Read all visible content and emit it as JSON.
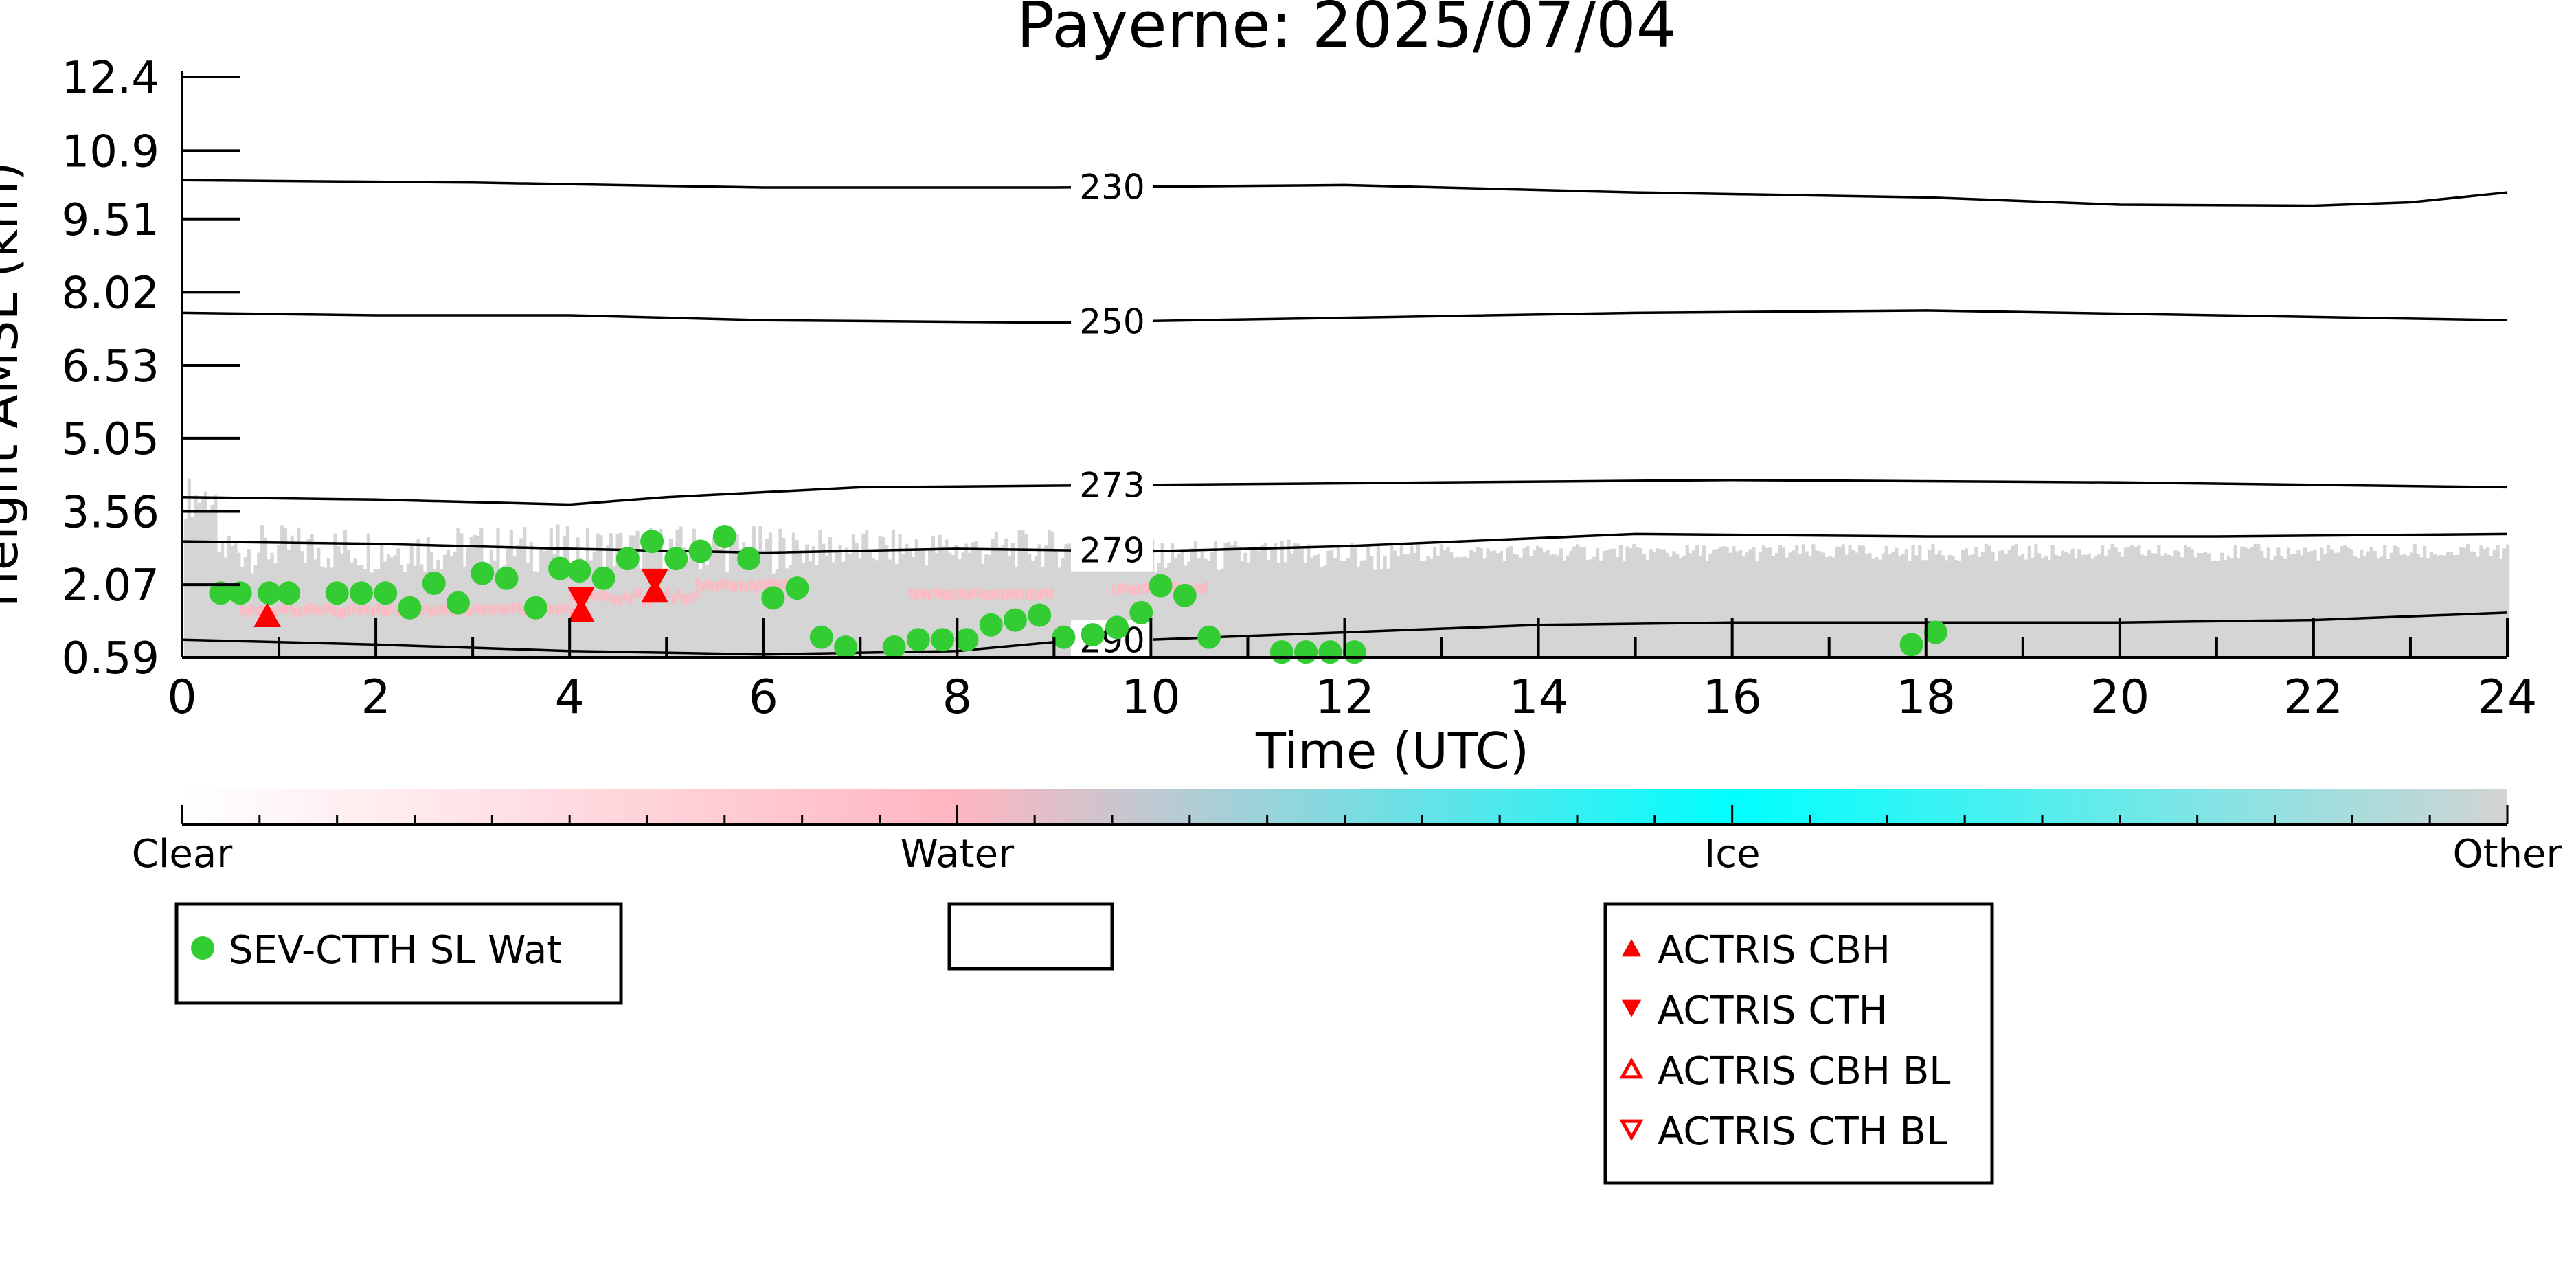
{
  "chart_data": {
    "type": "scatter",
    "title": "Payerne: 2025/07/04",
    "xlabel": "Time (UTC)",
    "ylabel": "Height AMSL (km)",
    "xlim": [
      0,
      24
    ],
    "ylim": [
      0.59,
      12.4
    ],
    "xticks": [
      "0",
      "2",
      "4",
      "6",
      "8",
      "10",
      "12",
      "14",
      "16",
      "18",
      "20",
      "22",
      "24"
    ],
    "yticks": [
      "0.59",
      "2.07",
      "3.56",
      "5.05",
      "6.53",
      "8.02",
      "9.51",
      "10.9",
      "12.4"
    ],
    "ytick_values": [
      0.59,
      2.07,
      3.56,
      5.05,
      6.53,
      8.02,
      9.51,
      10.9,
      12.4
    ],
    "isotherms": [
      {
        "label": "230",
        "label_x": 9.6,
        "points": [
          [
            0,
            10.3
          ],
          [
            3,
            10.25
          ],
          [
            6,
            10.15
          ],
          [
            9,
            10.15
          ],
          [
            12,
            10.2
          ],
          [
            15,
            10.05
          ],
          [
            18,
            9.95
          ],
          [
            20,
            9.8
          ],
          [
            22,
            9.78
          ],
          [
            23,
            9.85
          ],
          [
            24,
            10.05
          ]
        ]
      },
      {
        "label": "250",
        "label_x": 9.6,
        "points": [
          [
            0,
            7.6
          ],
          [
            2,
            7.55
          ],
          [
            4,
            7.55
          ],
          [
            6,
            7.45
          ],
          [
            9,
            7.4
          ],
          [
            12,
            7.5
          ],
          [
            15,
            7.6
          ],
          [
            18,
            7.65
          ],
          [
            21,
            7.55
          ],
          [
            24,
            7.45
          ]
        ]
      },
      {
        "label": "273",
        "label_x": 9.6,
        "points": [
          [
            0,
            3.85
          ],
          [
            2,
            3.8
          ],
          [
            4,
            3.7
          ],
          [
            5,
            3.85
          ],
          [
            7,
            4.05
          ],
          [
            10,
            4.1
          ],
          [
            13,
            4.15
          ],
          [
            16,
            4.2
          ],
          [
            20,
            4.15
          ],
          [
            24,
            4.05
          ]
        ]
      },
      {
        "label": "279",
        "label_x": 9.6,
        "points": [
          [
            0,
            2.95
          ],
          [
            2,
            2.9
          ],
          [
            4,
            2.8
          ],
          [
            6,
            2.72
          ],
          [
            8,
            2.8
          ],
          [
            10,
            2.75
          ],
          [
            12,
            2.85
          ],
          [
            15,
            3.1
          ],
          [
            18,
            3.05
          ],
          [
            21,
            3.05
          ],
          [
            24,
            3.1
          ]
        ]
      },
      {
        "label": "290",
        "label_x": 9.6,
        "points": [
          [
            0,
            0.95
          ],
          [
            2,
            0.85
          ],
          [
            4,
            0.72
          ],
          [
            6,
            0.65
          ],
          [
            8,
            0.72
          ],
          [
            9,
            0.9
          ],
          [
            10,
            0.95
          ],
          [
            12,
            1.1
          ],
          [
            14,
            1.25
          ],
          [
            16,
            1.3
          ],
          [
            18,
            1.3
          ],
          [
            20,
            1.3
          ],
          [
            22,
            1.35
          ],
          [
            24,
            1.5
          ]
        ]
      }
    ],
    "series": [
      {
        "name": "SEV-CTTH SL Wat",
        "color": "#33cc33",
        "marker": "circle",
        "points": [
          [
            0.4,
            1.9
          ],
          [
            0.6,
            1.9
          ],
          [
            0.9,
            1.9
          ],
          [
            1.1,
            1.9
          ],
          [
            1.6,
            1.9
          ],
          [
            1.85,
            1.9
          ],
          [
            2.1,
            1.9
          ],
          [
            2.35,
            1.6
          ],
          [
            2.6,
            2.1
          ],
          [
            2.85,
            1.7
          ],
          [
            3.1,
            2.3
          ],
          [
            3.35,
            2.2
          ],
          [
            3.65,
            1.6
          ],
          [
            3.9,
            2.4
          ],
          [
            4.1,
            2.35
          ],
          [
            4.35,
            2.2
          ],
          [
            4.6,
            2.6
          ],
          [
            4.85,
            2.95
          ],
          [
            5.1,
            2.6
          ],
          [
            5.35,
            2.75
          ],
          [
            5.6,
            3.05
          ],
          [
            5.85,
            2.6
          ],
          [
            6.1,
            1.8
          ],
          [
            6.35,
            2.0
          ],
          [
            6.6,
            1.0
          ],
          [
            6.85,
            0.8
          ],
          [
            7.35,
            0.8
          ],
          [
            7.6,
            0.95
          ],
          [
            7.85,
            0.95
          ],
          [
            8.1,
            0.95
          ],
          [
            8.35,
            1.25
          ],
          [
            8.6,
            1.35
          ],
          [
            8.85,
            1.45
          ],
          [
            9.1,
            1.0
          ],
          [
            9.4,
            1.05
          ],
          [
            9.65,
            1.2
          ],
          [
            9.9,
            1.5
          ],
          [
            10.1,
            2.05
          ],
          [
            10.35,
            1.85
          ],
          [
            10.6,
            1.0
          ],
          [
            11.35,
            0.7
          ],
          [
            11.6,
            0.7
          ],
          [
            11.85,
            0.7
          ],
          [
            12.1,
            0.7
          ],
          [
            17.85,
            0.85
          ],
          [
            18.1,
            1.1
          ]
        ]
      },
      {
        "name": "ACTRIS CBH",
        "color": "#ff0000",
        "marker": "triangle-up",
        "points": [
          [
            0.88,
            1.45
          ],
          [
            4.12,
            1.55
          ],
          [
            4.88,
            1.95
          ]
        ]
      },
      {
        "name": "ACTRIS CTH",
        "color": "#ff0000",
        "marker": "triangle-down",
        "points": [
          [
            4.12,
            1.78
          ],
          [
            4.88,
            2.15
          ]
        ]
      }
    ],
    "colorbar": {
      "labels": [
        "Clear",
        "Water",
        "Ice",
        "Other"
      ],
      "colors": [
        "#ffffff",
        "#ffb6c1",
        "#00ffff",
        "#d3d3d3"
      ]
    },
    "legends": [
      {
        "entries": [
          {
            "label": "SEV-CTTH SL Wat",
            "color": "#33cc33",
            "marker": "circle"
          }
        ]
      },
      {
        "entries": []
      },
      {
        "entries": [
          {
            "label": "ACTRIS CBH",
            "color": "#ff0000",
            "marker": "triangle-up"
          },
          {
            "label": "ACTRIS CTH",
            "color": "#ff0000",
            "marker": "triangle-down"
          },
          {
            "label": "ACTRIS CBH BL",
            "color": "#ff0000",
            "marker": "triangle-up-open"
          },
          {
            "label": "ACTRIS CTH BL",
            "color": "#ff0000",
            "marker": "triangle-down-open"
          }
        ]
      }
    ]
  }
}
